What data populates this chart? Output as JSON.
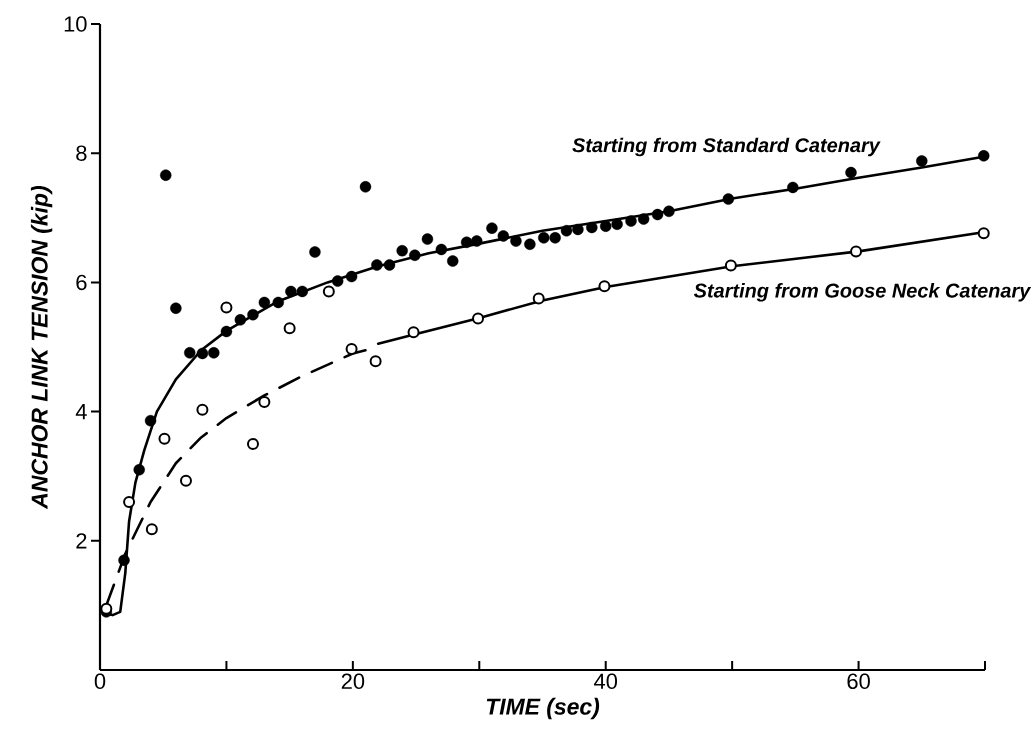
{
  "chart_data": {
    "type": "scatter",
    "xlabel": "TIME (sec)",
    "ylabel": "ANCHOR LINK TENSION (kip)",
    "xlim": [
      0,
      70
    ],
    "ylim": [
      0,
      10
    ],
    "xticks": [
      0,
      {
        "value": 10,
        "label": null
      },
      20,
      {
        "value": 30,
        "label": null
      },
      40,
      {
        "value": 50,
        "label": null
      },
      60,
      {
        "value": 70,
        "label": null
      }
    ],
    "yticks": [
      2,
      4,
      6,
      8,
      10
    ],
    "series": [
      {
        "color": "#000000",
        "marker": "circle",
        "x": [
          0.5,
          1.9,
          3.1,
          4.0,
          5.2,
          6.0,
          7.1,
          8.1,
          9.0,
          10.0,
          11.1,
          12.1,
          13.0,
          14.1,
          15.1,
          16.0,
          17.0,
          18.8,
          19.9,
          21.0,
          21.9,
          22.9,
          23.9,
          24.9,
          25.9,
          27.0,
          27.9,
          29.0,
          29.8,
          31.0,
          31.9,
          32.9,
          34.0,
          35.1,
          36.0,
          36.9,
          37.8,
          38.9,
          40.0,
          40.9,
          42.0,
          43.0,
          44.1,
          45.0,
          49.7,
          54.8,
          59.4,
          65.0,
          69.9
        ],
        "values": [
          0.9,
          1.7,
          3.1,
          3.86,
          7.66,
          5.6,
          4.91,
          4.9,
          4.91,
          5.24,
          5.42,
          5.5,
          5.69,
          5.69,
          5.86,
          5.86,
          6.47,
          6.02,
          6.09,
          7.48,
          6.27,
          6.27,
          6.49,
          6.42,
          6.67,
          6.51,
          6.33,
          6.62,
          6.64,
          6.84,
          6.72,
          6.64,
          6.59,
          6.69,
          6.69,
          6.8,
          6.82,
          6.85,
          6.87,
          6.9,
          6.95,
          6.98,
          7.05,
          7.1,
          7.29,
          7.47,
          7.7,
          7.88,
          7.96
        ]
      },
      {
        "color": "#000000",
        "marker": "open circle",
        "x": [
          0.5,
          2.3,
          4.1,
          5.1,
          6.8,
          8.1,
          10.0,
          12.1,
          13.0,
          15.0,
          18.1,
          19.9,
          21.8,
          24.8,
          29.9,
          34.7,
          39.9,
          49.9,
          59.8,
          69.9
        ],
        "values": [
          0.95,
          2.6,
          2.18,
          3.58,
          2.93,
          4.03,
          5.61,
          3.5,
          4.15,
          5.29,
          5.86,
          4.97,
          4.78,
          5.23,
          5.44,
          5.75,
          5.94,
          6.26,
          6.48,
          6.76
        ]
      },
      {
        "type": "line",
        "name": "Starting from Standard Catenary",
        "color": "#000000",
        "line_style": "solid",
        "x": [
          0.3,
          1.0,
          1.6,
          2.0,
          2.3,
          2.8,
          3.5,
          4.5,
          6.0,
          8.0,
          10.0,
          14.0,
          18.0,
          22.0,
          26.0,
          30.0,
          35.0,
          40.0,
          45.0,
          50.0,
          55.0,
          60.0,
          65.0,
          70.0
        ],
        "values": [
          0.88,
          0.85,
          0.9,
          1.5,
          2.3,
          2.9,
          3.4,
          4.0,
          4.5,
          4.95,
          5.25,
          5.7,
          6.0,
          6.25,
          6.45,
          6.6,
          6.8,
          6.95,
          7.1,
          7.3,
          7.45,
          7.62,
          7.78,
          7.95
        ]
      },
      {
        "type": "line",
        "color": "#000000",
        "line_style": "dashed",
        "x": [
          0.5,
          2.0,
          4.0,
          6.0,
          8.0,
          10.0,
          13.0,
          16.0,
          20.0,
          22.0
        ],
        "values": [
          1.0,
          1.8,
          2.6,
          3.2,
          3.6,
          3.9,
          4.25,
          4.55,
          4.9,
          5.0
        ]
      },
      {
        "type": "line",
        "name": "Starting from Goose Neck Catenary",
        "color": "#000000",
        "line_style": "solid",
        "x": [
          22.0,
          25.0,
          30.0,
          35.0,
          40.0,
          50.0,
          60.0,
          70.0
        ],
        "values": [
          5.05,
          5.2,
          5.45,
          5.72,
          5.93,
          6.25,
          6.48,
          6.78
        ]
      }
    ]
  }
}
